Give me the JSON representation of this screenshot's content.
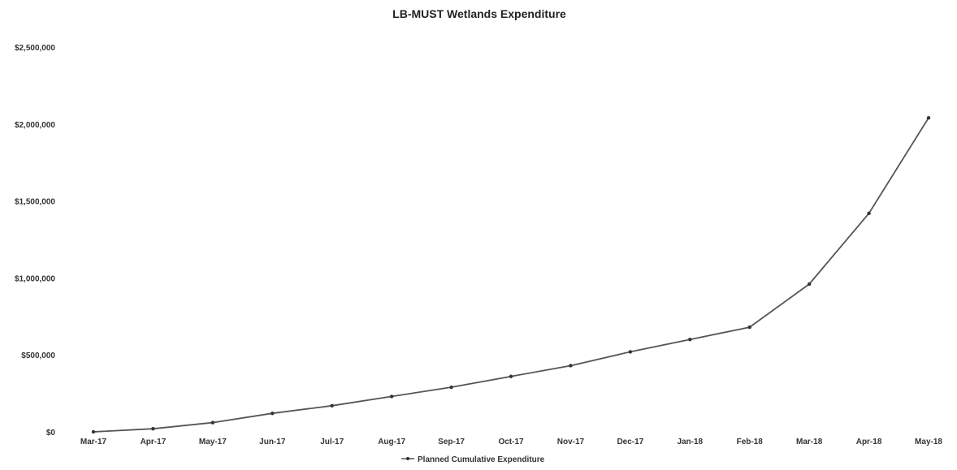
{
  "chart_data": {
    "type": "line",
    "title": "LB-MUST Wetlands Expenditure",
    "xlabel": "",
    "ylabel": "",
    "categories": [
      "Mar-17",
      "Apr-17",
      "May-17",
      "Jun-17",
      "Jul-17",
      "Aug-17",
      "Sep-17",
      "Oct-17",
      "Nov-17",
      "Dec-17",
      "Jan-18",
      "Feb-18",
      "Mar-18",
      "Apr-18",
      "May-18"
    ],
    "series": [
      {
        "name": "Planned Cumulative Expenditure",
        "values": [
          0,
          20000,
          60000,
          120000,
          170000,
          230000,
          290000,
          360000,
          430000,
          520000,
          600000,
          680000,
          960000,
          1420000,
          2040000
        ]
      }
    ],
    "ylim": [
      0,
      2500000
    ],
    "yticks": [
      "$0",
      "$500,000",
      "$1,000,000",
      "$1,500,000",
      "$2,000,000",
      "$2,500,000"
    ],
    "grid": false,
    "legend_position": "bottom",
    "colors": {
      "line": "#555555",
      "marker": "#333333"
    }
  }
}
